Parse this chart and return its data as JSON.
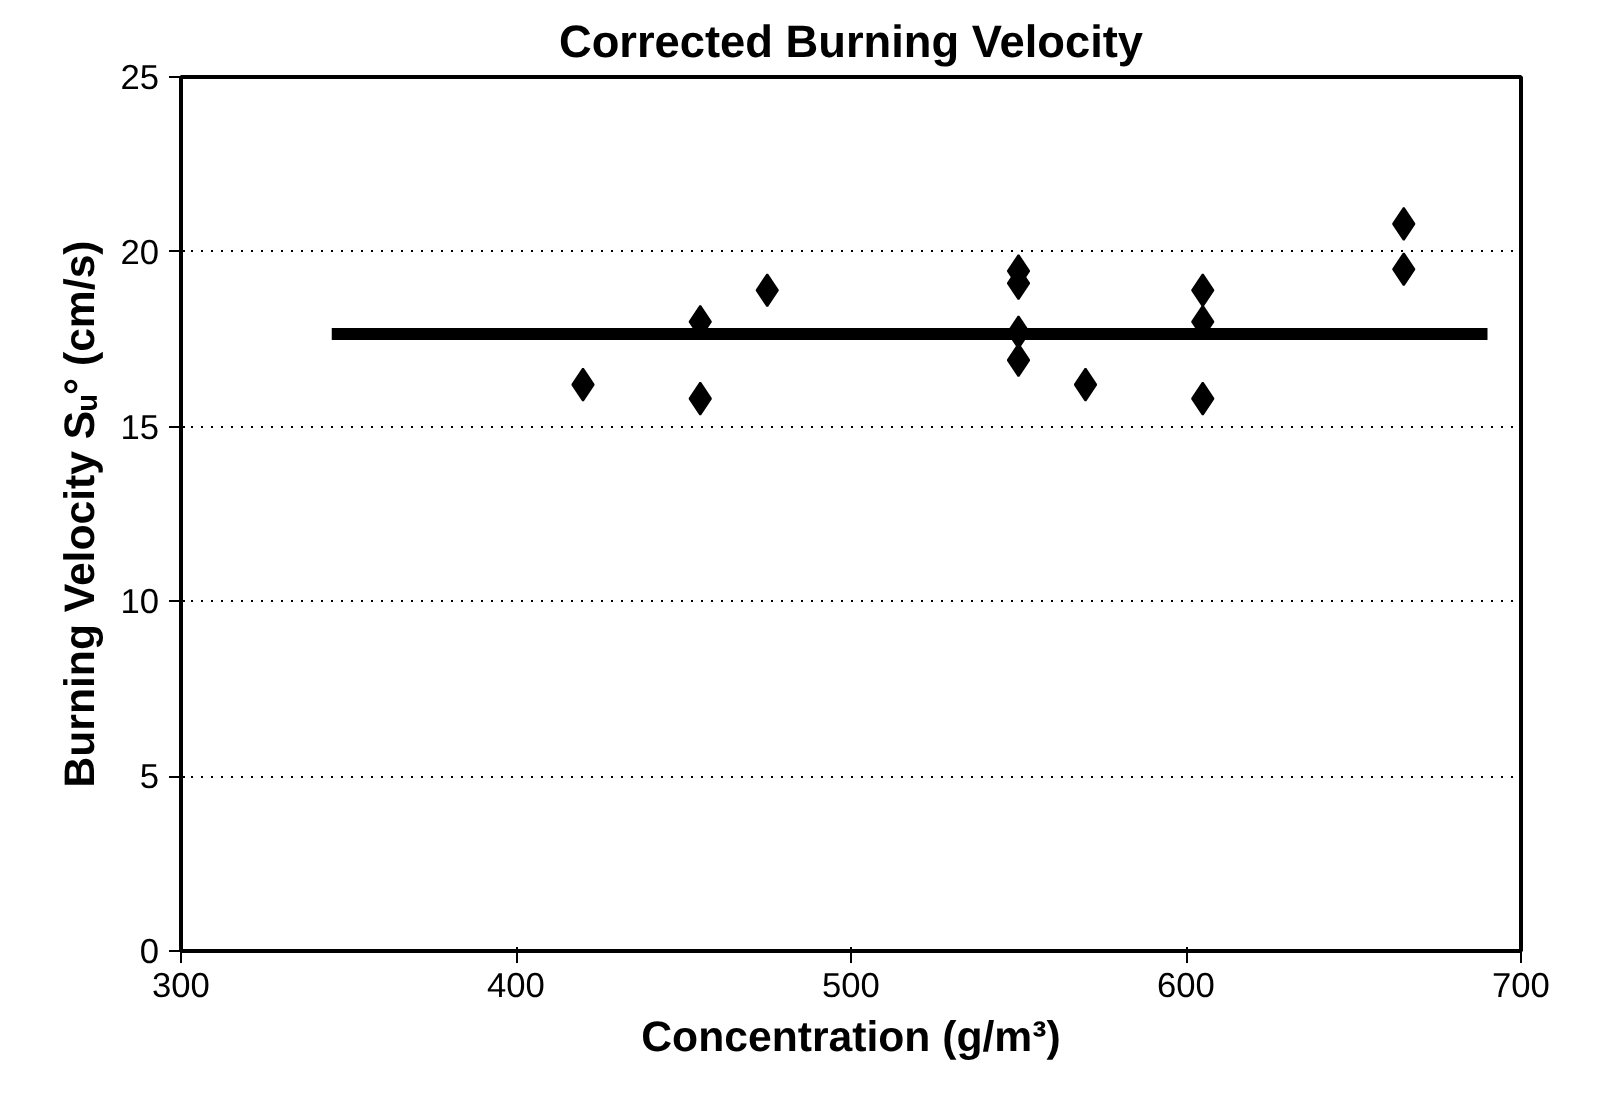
{
  "chart_data": {
    "type": "scatter",
    "title": "Corrected Burning Velocity",
    "xlabel": "Concentration (g/m³)",
    "ylabel": "Burning Velocity Sᵤ° (cm/s)",
    "grid": "y",
    "xlim": [
      300,
      700
    ],
    "xticks": [
      300,
      400,
      500,
      600,
      700
    ],
    "ylim": [
      0,
      25
    ],
    "yticks": [
      0,
      5,
      10,
      15,
      20,
      25
    ],
    "series": [
      {
        "color": "#000000",
        "marker": "diamond",
        "x": [
          420,
          455,
          455,
          475,
          550,
          550,
          550,
          550,
          570,
          605,
          605,
          605,
          665,
          665
        ],
        "values": [
          16.2,
          18.0,
          15.8,
          18.9,
          19.45,
          19.1,
          17.7,
          16.9,
          16.2,
          18.9,
          18.0,
          15.8,
          20.8,
          19.5
        ]
      },
      {
        "type": "line",
        "marker": "none",
        "color": "#000000",
        "x": [
          345,
          690
        ],
        "values": [
          17.65,
          17.65
        ]
      }
    ]
  }
}
